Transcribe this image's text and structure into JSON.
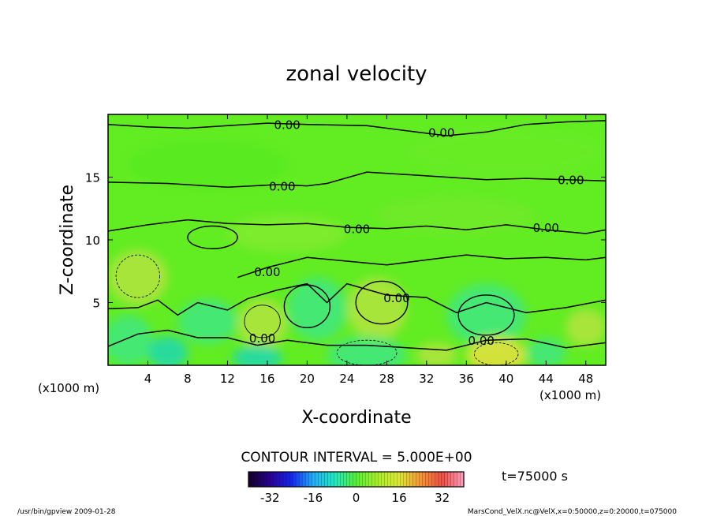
{
  "chart_data": {
    "type": "contour",
    "title": "zonal velocity",
    "xlabel": "X-coordinate",
    "ylabel": "Z-coordinate",
    "x_unit": "(x1000 m)",
    "xlim": [
      0,
      50
    ],
    "ylim": [
      0,
      20
    ],
    "x_ticks": [
      "4",
      "8",
      "12",
      "16",
      "20",
      "24",
      "28",
      "32",
      "36",
      "40",
      "44",
      "48"
    ],
    "y_ticks": [
      "5",
      "10",
      "15"
    ],
    "contour_interval_text": "CONTOUR INTERVAL = 5.000E+00",
    "contour_labels": [
      "0.00",
      "0.00",
      "0.00",
      "0.00",
      "0.00",
      "0.00",
      "0.00",
      "0.00",
      "0.00",
      "0.00"
    ],
    "time_text": "t=75000 s",
    "colorbar": {
      "range": [
        -40,
        40
      ],
      "tick_labels": [
        "-32",
        "-16",
        "0",
        "16",
        "32"
      ]
    },
    "colors": {
      "field_base": "#60ee20",
      "warm": "#b4e440",
      "cool": "#40e880",
      "strong_warm": "#e8e040",
      "strong_cool": "#20d8b0"
    }
  },
  "footer": {
    "left": "/usr/bin/gpview  2009-01-28",
    "right": "MarsCond_VelX.nc@VelX,x=0:50000,z=0:20000,t=075000"
  }
}
